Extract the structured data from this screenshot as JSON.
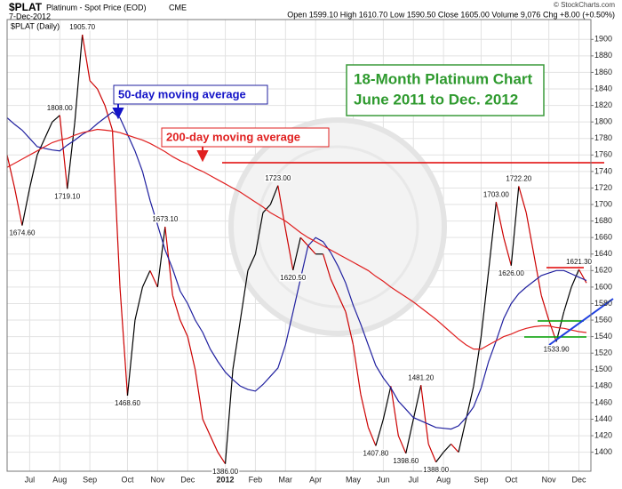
{
  "header": {
    "symbol": "$PLAT",
    "name": "Platinum - Spot Price (EOD)",
    "exchange": "CME",
    "date": "7-Dec-2012",
    "quote": "Open 1599.10 High 1610.70 Low 1590.50 Close 1605.00 Volume 9,076 Chg +8.00 (+0.50%)",
    "copyright": "© StockCharts.com"
  },
  "chart_data": {
    "type": "line",
    "title": "18-Month Platinum Chart",
    "subtitle": "June 2011 to Dec. 2012",
    "categories": [
      null,
      null,
      null,
      "Jul",
      null,
      null,
      null,
      "Aug",
      null,
      null,
      null,
      "Sep",
      null,
      null,
      null,
      null,
      "Oct",
      null,
      null,
      null,
      "Nov",
      null,
      null,
      null,
      "Dec",
      null,
      null,
      null,
      null,
      "2012",
      null,
      null,
      null,
      "Feb",
      null,
      null,
      null,
      "Mar",
      null,
      null,
      null,
      "Apr",
      null,
      null,
      null,
      null,
      "May",
      null,
      null,
      null,
      "Jun",
      null,
      null,
      null,
      "Jul",
      null,
      null,
      null,
      "Aug",
      null,
      null,
      null,
      null,
      "Sep",
      null,
      null,
      null,
      "Oct",
      null,
      null,
      null,
      null,
      "Nov",
      null,
      null,
      null,
      "Dec",
      null
    ],
    "series": [
      {
        "name": "$PLAT (Daily)",
        "color": "#000000",
        "down_color": "#cc0000",
        "values": [
          1760,
          1720,
          1674.6,
          1720,
          1760,
          1780,
          1800,
          1808,
          1719.1,
          1800,
          1905.7,
          1850,
          1840,
          1820,
          1790,
          1600,
          1468.6,
          1560,
          1600,
          1620,
          1600,
          1673.1,
          1590,
          1560,
          1540,
          1500,
          1440,
          1420,
          1400,
          1386,
          1500,
          1560,
          1620,
          1640,
          1690,
          1700,
          1723,
          1670,
          1620.5,
          1660,
          1650,
          1640,
          1640,
          1610,
          1590,
          1570,
          1530,
          1470,
          1430,
          1407.8,
          1440,
          1480,
          1420,
          1398.6,
          1440,
          1481.2,
          1410,
          1388,
          1400,
          1410,
          1400,
          1440,
          1480,
          1540,
          1620,
          1703,
          1660,
          1626,
          1722.2,
          1690,
          1640,
          1590,
          1560,
          1533.9,
          1570,
          1600,
          1621.3,
          1605
        ],
        "value_labels": [
          null,
          null,
          "1674.60",
          null,
          null,
          null,
          null,
          "1808.00",
          "1719.10",
          null,
          "1905.70",
          null,
          null,
          null,
          null,
          null,
          "1468.60",
          null,
          null,
          null,
          null,
          "1673.10",
          null,
          null,
          null,
          null,
          null,
          null,
          null,
          "1386.00",
          null,
          null,
          null,
          null,
          null,
          null,
          "1723.00",
          null,
          "1620.50",
          null,
          null,
          null,
          null,
          null,
          null,
          null,
          null,
          null,
          null,
          "1407.80",
          null,
          null,
          null,
          "1398.60",
          null,
          "1481.20",
          null,
          "1388.00",
          null,
          null,
          null,
          null,
          null,
          null,
          null,
          "1703.00",
          null,
          "1626.00",
          "1722.20",
          null,
          null,
          null,
          null,
          "1533.90",
          null,
          null,
          "1621.30",
          null
        ]
      },
      {
        "name": "50-day moving average",
        "color": "#1f1f9f",
        "values": [
          1805,
          1797,
          1790,
          1780,
          1770,
          1768,
          1766,
          1765,
          1772,
          1778,
          1785,
          1790,
          1798,
          1805,
          1812,
          1805,
          1785,
          1765,
          1740,
          1705,
          1675,
          1645,
          1622,
          1595,
          1580,
          1560,
          1545,
          1525,
          1510,
          1497,
          1488,
          1480,
          1476,
          1474,
          1482,
          1492,
          1502,
          1530,
          1570,
          1610,
          1650,
          1660,
          1655,
          1642,
          1625,
          1605,
          1578,
          1555,
          1530,
          1505,
          1490,
          1478,
          1462,
          1452,
          1442,
          1438,
          1434,
          1430,
          1429,
          1428,
          1432,
          1442,
          1455,
          1478,
          1510,
          1535,
          1562,
          1580,
          1592,
          1600,
          1607,
          1614,
          1617,
          1620,
          1620,
          1616,
          1612,
          1608
        ]
      },
      {
        "name": "200-day moving average",
        "color": "#e02020",
        "values": [
          1745,
          1750,
          1755,
          1760,
          1765,
          1770,
          1775,
          1778,
          1780,
          1784,
          1787,
          1789,
          1791,
          1790,
          1789,
          1787,
          1784,
          1781,
          1778,
          1774,
          1769,
          1764,
          1758,
          1753,
          1749,
          1744,
          1740,
          1735,
          1730,
          1725,
          1720,
          1715,
          1709,
          1703,
          1697,
          1690,
          1685,
          1680,
          1673,
          1666,
          1660,
          1655,
          1650,
          1645,
          1640,
          1635,
          1630,
          1625,
          1620,
          1613,
          1607,
          1600,
          1594,
          1588,
          1582,
          1575,
          1568,
          1561,
          1553,
          1545,
          1537,
          1530,
          1525,
          1525,
          1530,
          1535,
          1540,
          1543,
          1547,
          1550,
          1552,
          1553,
          1553,
          1551,
          1550,
          1548,
          1546,
          1545
        ]
      }
    ],
    "ylim": [
      1377,
      1924
    ],
    "yticks": [
      1400,
      1420,
      1440,
      1460,
      1480,
      1500,
      1520,
      1540,
      1560,
      1580,
      1600,
      1620,
      1640,
      1660,
      1680,
      1700,
      1720,
      1740,
      1760,
      1780,
      1800,
      1820,
      1840,
      1860,
      1880,
      1900
    ],
    "grid": true
  }
}
